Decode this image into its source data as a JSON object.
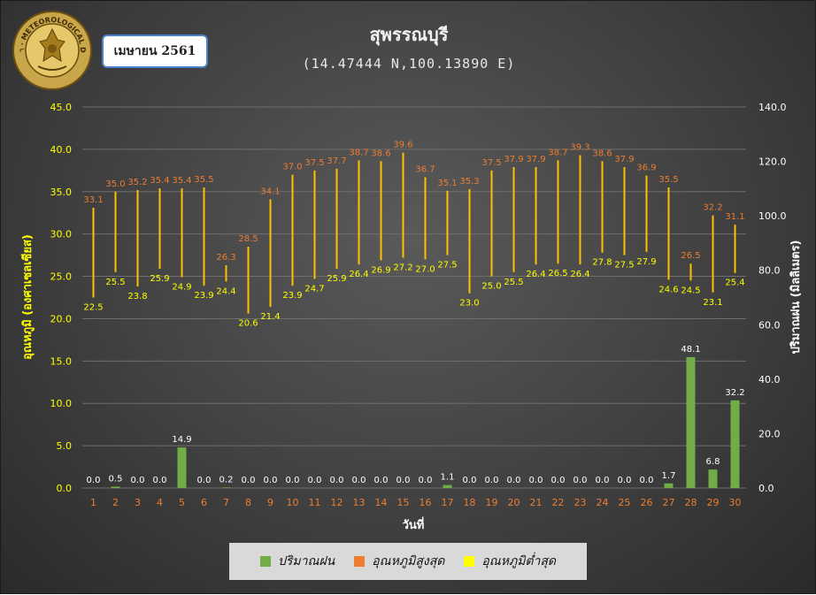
{
  "header": {
    "month": "เมษายน 2561",
    "title": "สุพรรณบุรี",
    "subtitle": "(14.47444 N,100.13890 E)",
    "logo_text": "กรมอุตุนิยมวิทยา · METEOROLOGICAL DEPARTMENT"
  },
  "legend": {
    "items": [
      {
        "label": "ปริมาณฝน",
        "color": "#70ad47"
      },
      {
        "label": "อุณหภูมิสูงสุด",
        "color": "#ed7d31"
      },
      {
        "label": "อุณหภูมิต่ำสุด",
        "color": "#ffff00"
      }
    ]
  },
  "colors": {
    "rain": "#70ad47",
    "max_label": "#ed7d31",
    "min_label": "#ffff00",
    "range_line": "#ffc000",
    "left_axis": "#ffff00",
    "right_axis": "#ffffff",
    "x_ticks": "#ed7d31"
  },
  "chart_data": {
    "type": "bar",
    "xlabel": "วันที่",
    "ylabel_left": "อุณหภูมิ (องศาเซลเซียส)",
    "ylabel_right": "ปริมาณฝน (มิลลิเมตร)",
    "ylim_left": [
      0,
      45
    ],
    "ylim_right": [
      0,
      140
    ],
    "yticks_left": [
      0,
      5,
      10,
      15,
      20,
      25,
      30,
      35,
      40,
      45
    ],
    "yticks_right": [
      0,
      20,
      40,
      60,
      80,
      100,
      120,
      140
    ],
    "categories": [
      1,
      2,
      3,
      4,
      5,
      6,
      7,
      8,
      9,
      10,
      11,
      12,
      13,
      14,
      15,
      16,
      17,
      18,
      19,
      20,
      21,
      22,
      23,
      24,
      25,
      26,
      27,
      28,
      29,
      30
    ],
    "series": [
      {
        "name": "ปริมาณฝน",
        "type": "bar",
        "axis": "right",
        "values": [
          0.0,
          0.5,
          0.0,
          0.0,
          14.9,
          0.0,
          0.2,
          0.0,
          0.0,
          0.0,
          0.0,
          0.0,
          0.0,
          0.0,
          0.0,
          0.0,
          1.1,
          0.0,
          0.0,
          0.0,
          0.0,
          0.0,
          0.0,
          0.0,
          0.0,
          0.0,
          1.7,
          48.1,
          6.8,
          32.2
        ]
      },
      {
        "name": "อุณหภูมิสูงสุด",
        "type": "high",
        "axis": "left",
        "values": [
          33.1,
          35.0,
          35.2,
          35.4,
          35.4,
          35.5,
          26.3,
          28.5,
          34.1,
          37.0,
          37.5,
          37.7,
          38.7,
          38.6,
          39.6,
          36.7,
          35.1,
          35.3,
          37.5,
          37.9,
          37.9,
          38.7,
          39.3,
          38.6,
          37.9,
          36.9,
          35.5,
          26.5,
          32.2,
          31.1
        ]
      },
      {
        "name": "อุณหภูมิต่ำสุด",
        "type": "low",
        "axis": "left",
        "values": [
          22.5,
          25.5,
          23.8,
          25.9,
          24.9,
          23.9,
          24.4,
          20.6,
          21.4,
          23.9,
          24.7,
          25.9,
          26.4,
          26.9,
          27.2,
          27.0,
          27.5,
          23.0,
          25.0,
          25.5,
          26.4,
          26.5,
          26.4,
          27.8,
          27.5,
          27.9,
          24.6,
          24.5,
          23.1,
          25.4
        ]
      }
    ]
  }
}
